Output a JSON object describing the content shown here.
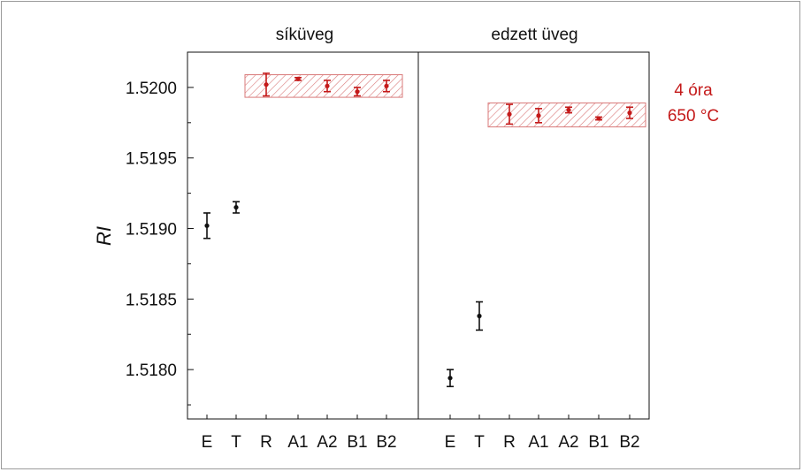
{
  "chart_data": {
    "type": "scatter",
    "ylabel": "RI",
    "ylim": [
      1.51765,
      1.52025
    ],
    "yticks": [
      1.518,
      1.5185,
      1.519,
      1.5195,
      1.52
    ],
    "ytick_labels": [
      "1.5180",
      "1.5185",
      "1.5190",
      "1.5195",
      "1.5200"
    ],
    "panels": [
      {
        "title": "síküveg",
        "categories": [
          "E",
          "T",
          "R",
          "A1",
          "A2",
          "B1",
          "B2"
        ],
        "values": [
          1.51902,
          1.51915,
          1.52002,
          1.52006,
          1.52001,
          1.51997,
          1.52001
        ],
        "errors": [
          9e-05,
          4e-05,
          8e-05,
          1e-05,
          4e-05,
          3e-05,
          4e-05
        ],
        "band": {
          "from_category": "R",
          "to_category": "B2",
          "y_range": [
            1.51993,
            1.52009
          ]
        }
      },
      {
        "title": "edzett üveg",
        "categories": [
          "E",
          "T",
          "R",
          "A1",
          "A2",
          "B1",
          "B2"
        ],
        "values": [
          1.51794,
          1.51838,
          1.51981,
          1.5198,
          1.51984,
          1.51978,
          1.51982
        ],
        "errors": [
          6e-05,
          0.0001,
          7e-05,
          5e-05,
          2e-05,
          1e-05,
          4e-05
        ],
        "band": {
          "from_category": "R",
          "to_category": "B2",
          "y_range": [
            1.51972,
            1.51989
          ]
        }
      }
    ],
    "annotation": [
      "4 óra",
      "650 °C"
    ],
    "colors": {
      "reference": "#111111",
      "heat_treated": "#c41a1a",
      "band_hatch": "#d97a7a"
    }
  }
}
